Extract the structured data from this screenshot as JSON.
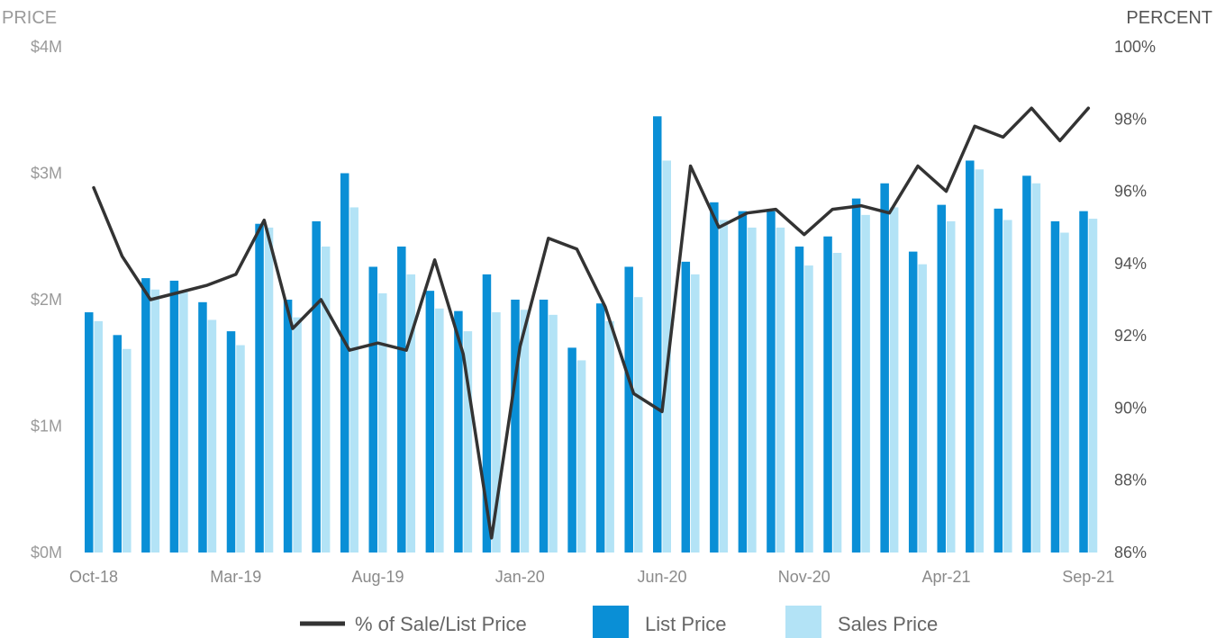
{
  "chart_data": {
    "type": "bar",
    "left_axis_title": "PRICE",
    "right_axis_title": "PERCENT",
    "left_ticks": [
      "$0M",
      "$1M",
      "$2M",
      "$3M",
      "$4M"
    ],
    "right_ticks": [
      "86%",
      "88%",
      "90%",
      "92%",
      "94%",
      "96%",
      "98%",
      "100%"
    ],
    "x_tick_labels": [
      "Oct-18",
      "Mar-19",
      "Aug-19",
      "Jan-20",
      "Jun-20",
      "Nov-20",
      "Apr-21",
      "Sep-21"
    ],
    "left_ylim": [
      0,
      4
    ],
    "right_ylim": [
      86,
      100
    ],
    "categories": [
      "Oct-18",
      "Nov-18",
      "Dec-18",
      "Jan-19",
      "Feb-19",
      "Mar-19",
      "Apr-19",
      "May-19",
      "Jun-19",
      "Jul-19",
      "Aug-19",
      "Sep-19",
      "Oct-19",
      "Nov-19",
      "Dec-19",
      "Jan-20",
      "Feb-20",
      "Mar-20",
      "Apr-20",
      "May-20",
      "Jun-20",
      "Jul-20",
      "Aug-20",
      "Sep-20",
      "Oct-20",
      "Nov-20",
      "Dec-20",
      "Jan-21",
      "Feb-21",
      "Mar-21",
      "Apr-21",
      "May-21",
      "Jun-21",
      "Jul-21",
      "Aug-21",
      "Sep-21"
    ],
    "series": [
      {
        "name": "List Price",
        "axis": "left",
        "unit": "$M",
        "color": "#0a8fd6",
        "values": [
          1.9,
          1.72,
          2.17,
          2.15,
          1.98,
          1.75,
          2.6,
          2.0,
          2.62,
          3.0,
          2.26,
          2.42,
          2.07,
          1.91,
          2.2,
          2.0,
          2.0,
          1.62,
          1.97,
          2.26,
          3.45,
          2.3,
          2.77,
          2.7,
          2.7,
          2.42,
          2.5,
          2.8,
          2.92,
          2.38,
          2.75,
          3.1,
          2.72,
          2.98,
          2.62,
          2.7
        ]
      },
      {
        "name": "Sales Price",
        "axis": "left",
        "unit": "$M",
        "color": "#b3e3f6",
        "values": [
          1.83,
          1.61,
          2.08,
          2.06,
          1.84,
          1.64,
          2.57,
          1.86,
          2.42,
          2.73,
          2.05,
          2.2,
          1.93,
          1.75,
          1.9,
          1.92,
          1.88,
          1.52,
          1.83,
          2.02,
          3.1,
          2.2,
          2.63,
          2.57,
          2.57,
          2.27,
          2.37,
          2.67,
          2.73,
          2.28,
          2.62,
          3.03,
          2.63,
          2.92,
          2.53,
          2.64
        ]
      },
      {
        "name": "% of Sale/List Price",
        "axis": "right",
        "unit": "%",
        "color": "#333333",
        "values": [
          96.1,
          94.2,
          93.0,
          93.2,
          93.4,
          93.7,
          95.2,
          92.2,
          93.0,
          91.6,
          91.8,
          91.6,
          94.1,
          91.5,
          86.4,
          91.7,
          94.7,
          94.4,
          92.8,
          90.4,
          89.9,
          96.7,
          95.0,
          95.4,
          95.5,
          94.8,
          95.5,
          95.6,
          95.4,
          96.7,
          96.0,
          97.8,
          97.5,
          98.3,
          97.4,
          98.3
        ]
      }
    ],
    "legend": [
      {
        "label": "% of Sale/List Price",
        "swatch": "line",
        "color": "#333333"
      },
      {
        "label": "List Price",
        "swatch": "box",
        "color": "#0a8fd6"
      },
      {
        "label": "Sales Price",
        "swatch": "box",
        "color": "#b3e3f6"
      }
    ],
    "legend_position": "bottom",
    "grid": false
  }
}
